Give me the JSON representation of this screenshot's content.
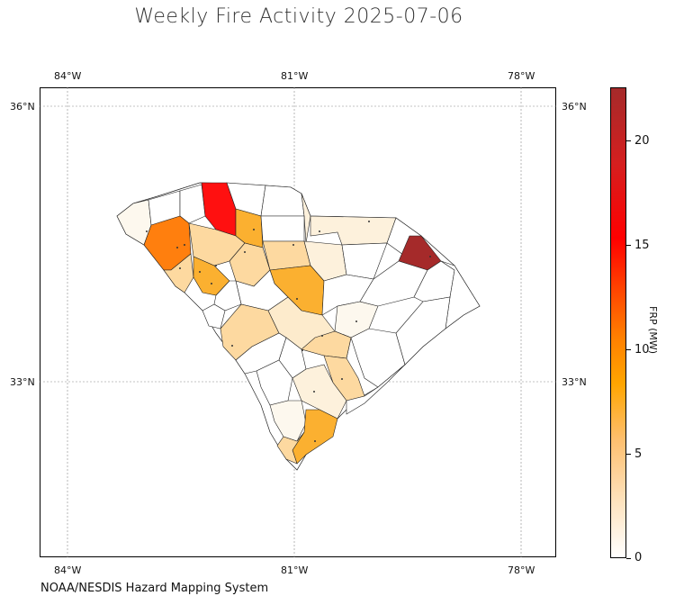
{
  "title": "Weekly Fire Activity 2025-07-06",
  "credit": "NOAA/NESDIS Hazard Mapping System",
  "longitude_ticks": [
    "84°W",
    "81°W",
    "78°W"
  ],
  "latitude_ticks": [
    "36°N",
    "33°N"
  ],
  "colorbar": {
    "label": "FRP (MW)",
    "ticks": [
      "0",
      "5",
      "10",
      "15",
      "20"
    ],
    "min": 0,
    "max": 22.5
  },
  "region": "South Carolina counties",
  "colors": {
    "no_fire": "#ffffff",
    "low": "#fdf5e6",
    "mid_low": "#fdd9a0",
    "mid": "#fbb030",
    "high": "#ff7f0e",
    "very_high": "#ff1010",
    "max": "#a52a2a"
  }
}
